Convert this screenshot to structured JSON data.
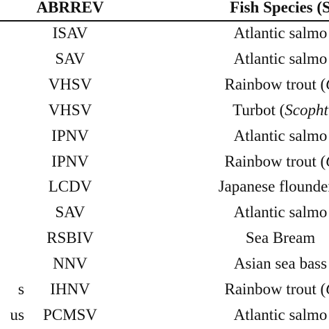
{
  "header": {
    "abbreviation": "ABRREV",
    "species": "Fish Species (S"
  },
  "rows": [
    {
      "left_fragment": "",
      "abbreviation": "ISAV",
      "species": "Atlantic salmo",
      "species_sci": ""
    },
    {
      "left_fragment": "",
      "abbreviation": "SAV",
      "species": "Atlantic salmo",
      "species_sci": ""
    },
    {
      "left_fragment": "",
      "abbreviation": "VHSV",
      "species": "Rainbow trout (",
      "species_sci": "C"
    },
    {
      "left_fragment": "",
      "abbreviation": "VHSV",
      "species": "Turbot (",
      "species_sci": "Scopht"
    },
    {
      "left_fragment": "",
      "abbreviation": "IPNV",
      "species": "Atlantic salmo",
      "species_sci": ""
    },
    {
      "left_fragment": "",
      "abbreviation": "IPNV",
      "species": "Rainbow trout (",
      "species_sci": "C"
    },
    {
      "left_fragment": "",
      "abbreviation": "LCDV",
      "species": "Japanese flounder (",
      "species_sci": ""
    },
    {
      "left_fragment": "",
      "abbreviation": "SAV",
      "species": "Atlantic salmo",
      "species_sci": ""
    },
    {
      "left_fragment": "",
      "abbreviation": "RSBIV",
      "species": "Sea Bream",
      "species_sci": ""
    },
    {
      "left_fragment": "",
      "abbreviation": "NNV",
      "species": "Asian sea bass",
      "species_sci": ""
    },
    {
      "left_fragment": "s",
      "abbreviation": "IHNV",
      "species": "Rainbow trout (",
      "species_sci": "C"
    },
    {
      "left_fragment": "us",
      "abbreviation": "PCMSV",
      "species": "Atlantic salmo",
      "species_sci": ""
    }
  ]
}
